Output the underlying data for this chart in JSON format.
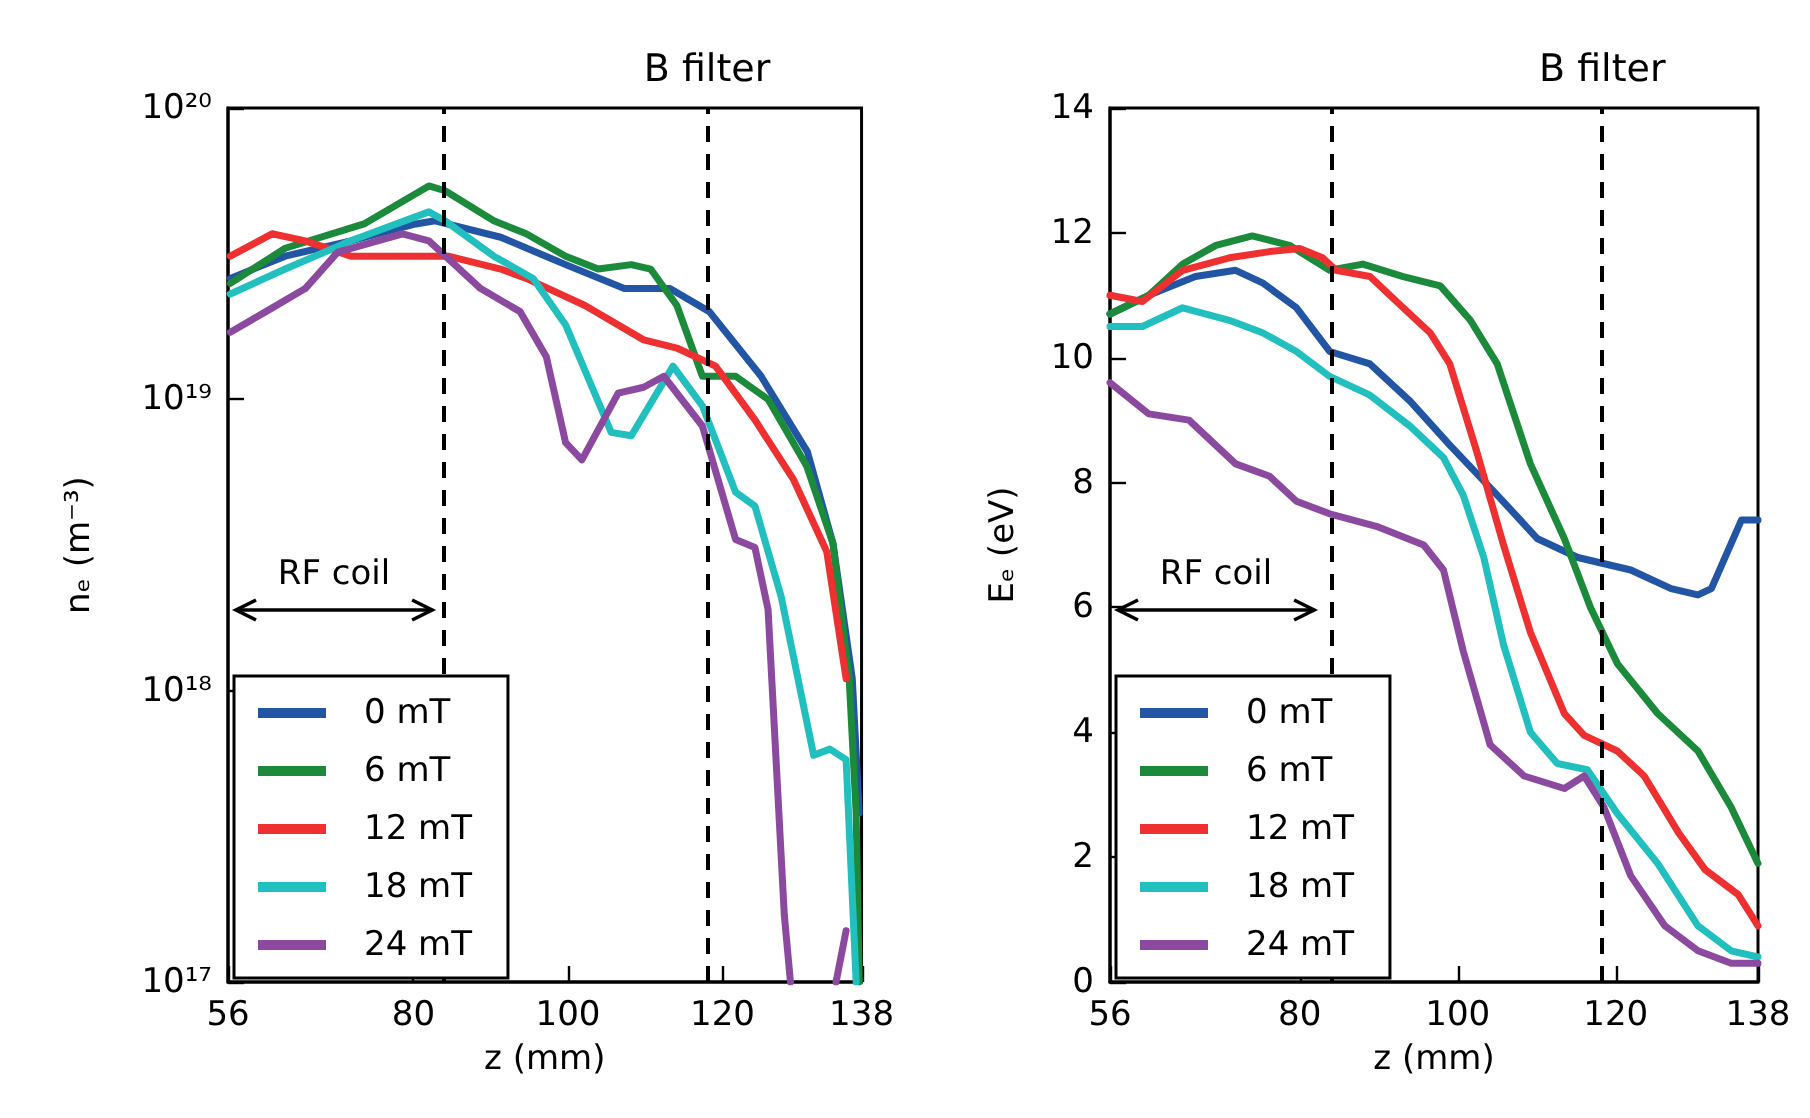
{
  "chart_data": [
    {
      "type": "line",
      "xlabel": "z (mm)",
      "ylabel": "nₑ (m⁻³)",
      "log": "y",
      "xlim": [
        56,
        138
      ],
      "xticks": [
        56,
        80,
        100,
        120,
        138
      ],
      "ylim": [
        1e+17,
        1e+20
      ],
      "yticks": [
        {
          "value": 1e+17,
          "label": "10¹⁷"
        },
        {
          "value": 1e+18,
          "label": "10¹⁸"
        },
        {
          "value": 1e+19,
          "label": "10¹⁹"
        },
        {
          "value": 1e+20,
          "label": "10²⁰"
        }
      ],
      "grid": false,
      "legend": "bottom left",
      "line_style": "solid",
      "marker": "none",
      "annotations": [
        "RF coil"
      ],
      "ref_lines": [
        {
          "axis": "x",
          "value": 84,
          "label": null,
          "color": "#000000",
          "line_style": "dashed"
        },
        {
          "axis": "x",
          "value": 118,
          "label": "B filter",
          "color": "#000000",
          "line_style": "dashed"
        }
      ],
      "series": [
        {
          "name": "0 mT",
          "color": "#2255a4",
          "x": [
            56.3,
            63.4,
            71.9,
            80.3,
            82.8,
            91.3,
            99.7,
            107.3,
            113.2,
            118.3,
            125,
            131,
            134.3,
            136.8,
            137.7
          ],
          "values": [
            2.6e+19,
            3.1e+19,
            3.5e+19,
            4e+19,
            4.1e+19,
            3.6e+19,
            2.9e+19,
            2.4e+19,
            2.4e+19,
            2e+19,
            1.2e+19,
            6.6e+18,
            3.2e+18,
            1.1e+18,
            3.8e+17
          ]
        },
        {
          "name": "6 mT",
          "color": "#1b8a3a",
          "x": [
            56.3,
            63.4,
            73.6,
            82,
            84.1,
            90.4,
            94.6,
            99.7,
            103.9,
            108.2,
            110.7,
            114.1,
            117.4,
            121.7,
            125.9,
            130.9,
            134.3,
            136.4,
            137.3,
            137.7
          ],
          "values": [
            2.5e+19,
            3.3e+19,
            4e+19,
            5.4e+19,
            5.2e+19,
            4.1e+19,
            3.7e+19,
            3.1e+19,
            2.8e+19,
            2.9e+19,
            2.8e+19,
            2.1e+19,
            1.2e+19,
            1.2e+19,
            1e+19,
            5.9e+18,
            3.2e+18,
            1.1e+18,
            3.8e+17,
            1e+17
          ]
        },
        {
          "name": "12 mT",
          "color": "#ee3030",
          "x": [
            56.3,
            61.7,
            66,
            71.9,
            80.3,
            84.5,
            91.3,
            94.6,
            102.2,
            109.8,
            114.1,
            119.1,
            124.2,
            129.2,
            133.5,
            136
          ],
          "values": [
            3.1e+19,
            3.7e+19,
            3.5e+19,
            3.1e+19,
            3.1e+19,
            3.1e+19,
            2.8e+19,
            2.6e+19,
            2.1e+19,
            1.6e+19,
            1.5e+19,
            1.3e+19,
            8.5e+18,
            5.3e+18,
            3e+18,
            1.1e+18
          ]
        },
        {
          "name": "18 mT",
          "color": "#22bfbf",
          "x": [
            56.3,
            63.4,
            71.9,
            82,
            84.1,
            90.4,
            95.5,
            99.7,
            105.6,
            108.2,
            113.6,
            117.4,
            121.7,
            124.2,
            127.6,
            131.8,
            133.9,
            136,
            137.3
          ],
          "values": [
            2.3e+19,
            2.8e+19,
            3.5e+19,
            4.4e+19,
            4.1e+19,
            3.1e+19,
            2.6e+19,
            1.8e+19,
            7.7e+18,
            7.5e+18,
            1.3e+19,
            9.5e+18,
            4.8e+18,
            4.3e+18,
            2.1e+18,
            6e+17,
            6.3e+17,
            5.8e+17,
            1e+17
          ]
        },
        {
          "name": "24 mT",
          "color": "#8b4aa0",
          "x": [
            56.3,
            60.9,
            66,
            70.2,
            78.6,
            82,
            88.7,
            93.8,
            97.2,
            99.7,
            101.8,
            106.5,
            109.8,
            112.4,
            117.4,
            121.7,
            124.2,
            125.9,
            128,
            128.8,
            131,
            134.7,
            136
          ],
          "values": [
            1.7e+19,
            2e+19,
            2.4e+19,
            3.2e+19,
            3.7e+19,
            3.5e+19,
            2.4e+19,
            2e+19,
            1.4e+19,
            7.1e+18,
            6.2e+18,
            1.05e+19,
            1.1e+19,
            1.2e+19,
            8.1e+18,
            3.3e+18,
            3.1e+18,
            1.9e+18,
            1.7e+17,
            1e+17,
            null,
            1e+17,
            1.5e+17
          ]
        }
      ]
    },
    {
      "type": "line",
      "xlabel": "z (mm)",
      "ylabel": "Eₑ (eV)",
      "xlim": [
        56,
        138
      ],
      "xticks": [
        56,
        80,
        100,
        120,
        138
      ],
      "ylim": [
        0,
        14
      ],
      "yticks": [
        0,
        2,
        4,
        6,
        8,
        10,
        12,
        14
      ],
      "grid": false,
      "legend": "bottom left",
      "line_style": "solid",
      "marker": "none",
      "annotations": [
        "RF coil"
      ],
      "ref_lines": [
        {
          "axis": "x",
          "value": 84,
          "label": null,
          "color": "#000000",
          "line_style": "dashed"
        },
        {
          "axis": "x",
          "value": 118.3,
          "label": "B filter",
          "color": "#000000",
          "line_style": "dashed"
        }
      ],
      "series": [
        {
          "name": "0 mT",
          "color": "#2255a4",
          "x": [
            56,
            60.9,
            66.8,
            71.9,
            75.3,
            79.6,
            83.8,
            88.9,
            94,
            99,
            105,
            110.1,
            115.2,
            121.9,
            127,
            130.4,
            132.1,
            135.9,
            138
          ],
          "values": [
            10.7,
            11.0,
            11.3,
            11.4,
            11.2,
            10.8,
            10.1,
            9.9,
            9.3,
            8.6,
            7.8,
            7.1,
            6.8,
            6.6,
            6.3,
            6.2,
            6.3,
            7.4,
            7.4
          ]
        },
        {
          "name": "6 mT",
          "color": "#1b8a3a",
          "x": [
            56,
            60.9,
            65.2,
            69.4,
            74,
            78.7,
            83.8,
            88,
            93.1,
            97.8,
            101.6,
            105,
            109.2,
            113.5,
            116.8,
            120.2,
            125.3,
            130.4,
            134.6,
            138
          ],
          "values": [
            10.7,
            11.0,
            11.5,
            11.8,
            11.95,
            11.8,
            11.4,
            11.5,
            11.3,
            11.15,
            10.6,
            9.9,
            8.3,
            7.1,
            6.0,
            5.1,
            4.3,
            3.7,
            2.8,
            1.9
          ]
        },
        {
          "name": "12 mT",
          "color": "#ee3030",
          "x": [
            56,
            60.1,
            65.2,
            71.1,
            76.2,
            80,
            82.9,
            84.6,
            88.9,
            93.1,
            96.5,
            99,
            102.4,
            105.8,
            109.2,
            113.5,
            116,
            120.2,
            123.6,
            127.9,
            131.3,
            135.5,
            138
          ],
          "values": [
            11.0,
            10.9,
            11.4,
            11.6,
            11.7,
            11.75,
            11.6,
            11.4,
            11.3,
            10.8,
            10.4,
            9.9,
            8.5,
            7.0,
            5.6,
            4.3,
            3.95,
            3.7,
            3.3,
            2.4,
            1.8,
            1.4,
            0.9
          ]
        },
        {
          "name": "18 mT",
          "color": "#22bfbf",
          "x": [
            56,
            60.1,
            65.2,
            71.1,
            75.3,
            79.6,
            83.8,
            88.9,
            94,
            98.2,
            100.7,
            103.3,
            105.8,
            109.2,
            112.6,
            116.4,
            120.2,
            125.3,
            130.4,
            134.6,
            138
          ],
          "values": [
            10.5,
            10.5,
            10.8,
            10.6,
            10.4,
            10.1,
            9.7,
            9.4,
            8.9,
            8.4,
            7.8,
            6.8,
            5.4,
            4.0,
            3.5,
            3.4,
            2.7,
            1.9,
            0.9,
            0.5,
            0.4
          ]
        },
        {
          "name": "24 mT",
          "color": "#8b4aa0",
          "x": [
            56,
            60.9,
            66,
            71.9,
            76.2,
            79.6,
            83.8,
            89.7,
            95.7,
            98.2,
            100.7,
            104.1,
            108.4,
            113.5,
            116,
            118.5,
            121.9,
            126.2,
            130.4,
            134.6,
            138
          ],
          "values": [
            9.6,
            9.1,
            9.0,
            8.3,
            8.1,
            7.7,
            7.5,
            7.3,
            7.0,
            6.6,
            5.3,
            3.8,
            3.3,
            3.1,
            3.3,
            2.8,
            1.7,
            0.9,
            0.5,
            0.3,
            0.3
          ]
        }
      ]
    }
  ]
}
